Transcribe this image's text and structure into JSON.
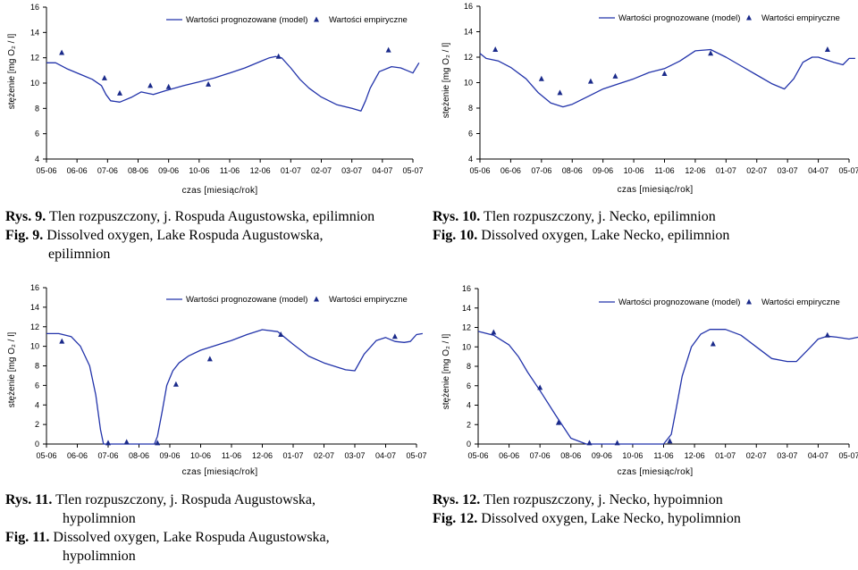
{
  "legend": {
    "model": "Wartości prognozowane (model)",
    "empirical": "Wartości empiryczne"
  },
  "xlabel": "czas [miesiąc/rok]",
  "ylabel": "stężenie [mg O₂ / l]",
  "colors": {
    "model": "#2233aa",
    "empirical": "#1a2a8a"
  },
  "captions": [
    {
      "pl_num": "Rys. 9.",
      "pl_text": "Tlen rozpuszczony, j. Rospuda Augustowska, epilimnion",
      "en_num": "Fig. 9.",
      "en_text": "Dissolved oxygen, Lake Rospuda Augustowska,",
      "en_cont": "epilimnion"
    },
    {
      "pl_num": "Rys. 10.",
      "pl_text": "Tlen rozpuszczony, j. Necko, epilimnion",
      "en_num": "Fig. 10.",
      "en_text": "Dissolved oxygen, Lake Necko, epilimnion"
    },
    {
      "pl_num": "Rys. 11.",
      "pl_text": "Tlen rozpuszczony, j. Rospuda Augustowska,",
      "pl_cont": "hypolimnion",
      "en_num": "Fig. 11.",
      "en_text": "Dissolved oxygen, Lake Rospuda Augustowska,",
      "en_cont": "hypolimnion"
    },
    {
      "pl_num": "Rys. 12.",
      "pl_text": "Tlen rozpuszczony, j. Necko, hypoimnion",
      "en_num": "Fig. 12.",
      "en_text": "Dissolved oxygen, Lake Necko, hypolimnion"
    }
  ],
  "chart_data": [
    {
      "type": "line",
      "categories": [
        "05-06",
        "06-06",
        "07-06",
        "08-06",
        "09-06",
        "10-06",
        "11-06",
        "12-06",
        "01-07",
        "02-07",
        "03-07",
        "04-07",
        "05-07"
      ],
      "ylim": [
        4,
        16
      ],
      "yticks": [
        4,
        6,
        8,
        10,
        12,
        14,
        16
      ],
      "legend_position": "top",
      "series": [
        {
          "name": "Wartości prognozowane (model)",
          "kind": "line",
          "x": [
            0,
            0.3,
            0.7,
            1.2,
            1.5,
            1.8,
            1.95,
            2.1,
            2.4,
            2.8,
            3.1,
            3.5,
            3.9,
            4.5,
            5,
            5.5,
            6,
            6.5,
            7,
            7.3,
            7.5,
            7.7,
            8,
            8.3,
            8.6,
            9,
            9.5,
            10,
            10.3,
            10.45,
            10.6,
            10.9,
            11.3,
            11.6,
            11.8,
            12,
            12.2
          ],
          "values": [
            11.6,
            11.6,
            11.1,
            10.6,
            10.3,
            9.8,
            9.1,
            8.6,
            8.5,
            8.9,
            9.3,
            9.1,
            9.4,
            9.8,
            10.1,
            10.4,
            10.8,
            11.2,
            11.7,
            12,
            12.1,
            12,
            11.2,
            10.3,
            9.6,
            8.9,
            8.3,
            8.0,
            7.8,
            8.6,
            9.6,
            10.9,
            11.3,
            11.2,
            11.0,
            10.8,
            11.6
          ]
        },
        {
          "name": "Wartości empiryczne",
          "kind": "markers",
          "x": [
            0.5,
            1.9,
            2.4,
            3.4,
            4,
            5.3,
            7.6,
            11.2
          ],
          "values": [
            12.4,
            10.4,
            9.2,
            9.8,
            9.7,
            9.9,
            12.1,
            12.6
          ]
        }
      ]
    },
    {
      "type": "line",
      "categories": [
        "05-06",
        "06-06",
        "07-06",
        "08-06",
        "09-06",
        "10-06",
        "11-06",
        "12-06",
        "01-07",
        "02-07",
        "03-07",
        "04-07",
        "05-07"
      ],
      "ylim": [
        4,
        16
      ],
      "yticks": [
        4,
        6,
        8,
        10,
        12,
        14,
        16
      ],
      "legend_position": "top",
      "series": [
        {
          "name": "Wartości prognozowane (model)",
          "kind": "line",
          "x": [
            0,
            0.2,
            0.6,
            1,
            1.5,
            1.9,
            2.3,
            2.7,
            3,
            3.5,
            4,
            4.5,
            5,
            5.5,
            6,
            6.5,
            7,
            7.5,
            8,
            8.5,
            9,
            9.5,
            9.9,
            10.2,
            10.5,
            10.8,
            11,
            11.5,
            11.8,
            12,
            12.2
          ],
          "values": [
            12.3,
            11.9,
            11.7,
            11.2,
            10.3,
            9.2,
            8.4,
            8.1,
            8.3,
            8.9,
            9.5,
            9.9,
            10.3,
            10.8,
            11.1,
            11.7,
            12.5,
            12.6,
            12.0,
            11.3,
            10.6,
            9.9,
            9.5,
            10.3,
            11.6,
            12.0,
            12.0,
            11.6,
            11.4,
            11.9,
            11.9
          ]
        },
        {
          "name": "Wartości empiryczne",
          "kind": "markers",
          "x": [
            0.5,
            2,
            2.6,
            3.6,
            4.4,
            6,
            7.5,
            11.3
          ],
          "values": [
            12.6,
            10.3,
            9.2,
            10.1,
            10.5,
            10.7,
            12.3,
            12.6
          ]
        }
      ]
    },
    {
      "type": "line",
      "categories": [
        "05-06",
        "06-06",
        "07-06",
        "08-06",
        "09-06",
        "10-06",
        "11-06",
        "12-06",
        "01-07",
        "02-07",
        "03-07",
        "04-07",
        "05-07"
      ],
      "ylim": [
        0,
        16
      ],
      "yticks": [
        0,
        2,
        4,
        6,
        8,
        10,
        12,
        14,
        16
      ],
      "legend_position": "top",
      "series": [
        {
          "name": "Wartości prognozowane (model)",
          "kind": "line",
          "x": [
            0,
            0.4,
            0.8,
            1.1,
            1.4,
            1.6,
            1.75,
            1.85,
            2,
            2.5,
            3,
            3.5,
            3.6,
            3.75,
            3.9,
            4.1,
            4.3,
            4.6,
            5,
            5.5,
            6,
            6.5,
            7,
            7.5,
            8,
            8.5,
            9,
            9.4,
            9.7,
            10,
            10.3,
            10.7,
            11,
            11.3,
            11.6,
            11.8,
            12,
            12.2
          ],
          "values": [
            11.3,
            11.3,
            11.0,
            10.0,
            8.0,
            5.0,
            1.5,
            0,
            0,
            0,
            0,
            0,
            0.8,
            3.3,
            6.0,
            7.5,
            8.3,
            9.0,
            9.6,
            10.1,
            10.6,
            11.2,
            11.7,
            11.5,
            10.2,
            9.0,
            8.3,
            7.9,
            7.6,
            7.5,
            9.2,
            10.6,
            10.9,
            10.5,
            10.4,
            10.5,
            11.2,
            11.3
          ]
        },
        {
          "name": "Wartości empiryczne",
          "kind": "markers",
          "x": [
            0.5,
            2,
            2.6,
            3.6,
            4.2,
            5.3,
            7.6,
            11.3
          ],
          "values": [
            10.5,
            0.1,
            0.2,
            0.1,
            6.1,
            8.7,
            11.2,
            11.0
          ]
        }
      ]
    },
    {
      "type": "line",
      "categories": [
        "05-06",
        "06-06",
        "07-06",
        "08-06",
        "09-06",
        "10-06",
        "11-06",
        "12-06",
        "01-07",
        "02-07",
        "03-07",
        "04-07",
        "05-07"
      ],
      "ylim": [
        0,
        16
      ],
      "yticks": [
        0,
        2,
        4,
        6,
        8,
        10,
        12,
        14,
        16
      ],
      "legend_position": "top",
      "series": [
        {
          "name": "Wartości prognozowane (model)",
          "kind": "line",
          "x": [
            0,
            0.5,
            1,
            1.3,
            1.6,
            2,
            2.5,
            3,
            3.5,
            4,
            4.5,
            5,
            5.5,
            6,
            6.25,
            6.4,
            6.6,
            6.9,
            7.2,
            7.5,
            8,
            8.5,
            9,
            9.5,
            10,
            10.3,
            10.7,
            11,
            11.3,
            11.6,
            12,
            12.3
          ],
          "values": [
            11.6,
            11.2,
            10.2,
            9.0,
            7.4,
            5.5,
            3.0,
            0.6,
            0,
            0,
            0,
            0,
            0,
            0,
            1.0,
            3.5,
            7.0,
            10.0,
            11.3,
            11.8,
            11.8,
            11.2,
            10.0,
            8.8,
            8.5,
            8.5,
            9.8,
            10.8,
            11.1,
            11.0,
            10.8,
            11.0
          ]
        },
        {
          "name": "Wartości empiryczne",
          "kind": "markers",
          "x": [
            0.5,
            2,
            2.6,
            3.6,
            4.5,
            6.2,
            7.6,
            11.3
          ],
          "values": [
            11.5,
            5.8,
            2.2,
            0.1,
            0.1,
            0.3,
            10.3,
            11.2
          ]
        }
      ]
    }
  ]
}
